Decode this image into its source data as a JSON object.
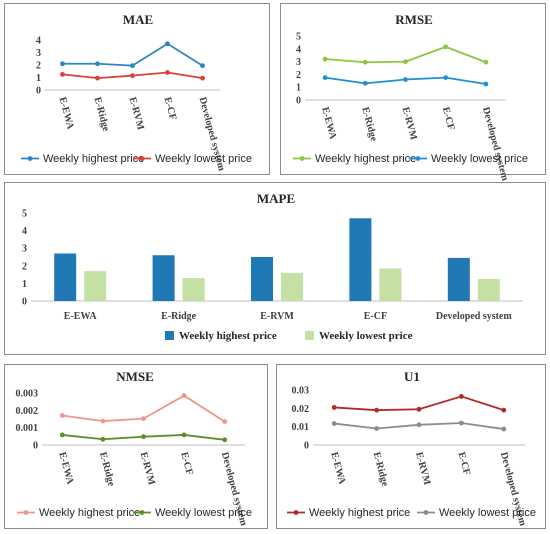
{
  "chart_data": [
    {
      "type": "line",
      "title": "MAE",
      "categories": [
        "E-EWA",
        "E-Ridge",
        "E-RVM",
        "E-CF",
        "Developed system"
      ],
      "ylim": [
        0,
        4
      ],
      "yticks": [
        "0",
        "1",
        "2",
        "3",
        "4"
      ],
      "series": [
        {
          "name": "Weekly highest price",
          "color": "#2e86c1",
          "values": [
            2.1,
            2.1,
            1.95,
            3.7,
            1.95
          ]
        },
        {
          "name": "Weekly lowest price",
          "color": "#d9423a",
          "values": [
            1.25,
            0.95,
            1.15,
            1.4,
            0.95
          ]
        }
      ],
      "legend": "bottom"
    },
    {
      "type": "line",
      "title": "RMSE",
      "categories": [
        "E-EWA",
        "E-Ridge",
        "E-RVM",
        "E-CF",
        "Developed system"
      ],
      "ylim": [
        0,
        5
      ],
      "yticks": [
        "0",
        "1",
        "2",
        "3",
        "4",
        "5"
      ],
      "series": [
        {
          "name": "Weekly highest price",
          "color": "#8dc63f",
          "values": [
            3.2,
            2.95,
            3.0,
            4.15,
            2.95
          ]
        },
        {
          "name": "Weekly lowest price",
          "color": "#1f8fd6",
          "values": [
            1.75,
            1.3,
            1.6,
            1.75,
            1.25
          ]
        }
      ],
      "legend": "bottom"
    },
    {
      "type": "bar",
      "title": "MAPE",
      "categories": [
        "E-EWA",
        "E-Ridge",
        "E-RVM",
        "E-CF",
        "Developed system"
      ],
      "ylim": [
        0,
        5
      ],
      "yticks": [
        "0",
        "1",
        "2",
        "3",
        "4",
        "5"
      ],
      "series": [
        {
          "name": "Weekly highest price",
          "color": "#2078b4",
          "values": [
            2.7,
            2.6,
            2.5,
            4.7,
            2.45
          ]
        },
        {
          "name": "Weekly lowest price",
          "color": "#c5e0a5",
          "values": [
            1.7,
            1.3,
            1.6,
            1.85,
            1.25
          ]
        }
      ],
      "legend": "bottom"
    },
    {
      "type": "line",
      "title": "NMSE",
      "categories": [
        "E-EWA",
        "E-Ridge",
        "E-RVM",
        "E-CF",
        "Developed system"
      ],
      "ylim": [
        0,
        0.003
      ],
      "yticks": [
        "0",
        "0.001",
        "0.002",
        "0.003"
      ],
      "series": [
        {
          "name": "Weekly highest price",
          "color": "#f1948a",
          "values": [
            0.0017,
            0.00138,
            0.00152,
            0.00285,
            0.00135
          ]
        },
        {
          "name": "Weekly lowest price",
          "color": "#5a8f29",
          "values": [
            0.00058,
            0.00033,
            0.00048,
            0.00058,
            0.0003
          ]
        }
      ],
      "legend": "bottom"
    },
    {
      "type": "line",
      "title": "U1",
      "categories": [
        "E-EWA",
        "E-Ridge",
        "E-RVM",
        "E-CF",
        "Developed system"
      ],
      "ylim": [
        0,
        0.03
      ],
      "yticks": [
        "0",
        "0.01",
        "0.02",
        "0.03"
      ],
      "series": [
        {
          "name": "Weekly highest price",
          "color": "#b22a2a",
          "values": [
            0.0205,
            0.019,
            0.0195,
            0.0265,
            0.019
          ]
        },
        {
          "name": "Weekly lowest price",
          "color": "#8c8c8c",
          "values": [
            0.0117,
            0.009,
            0.011,
            0.012,
            0.0087
          ]
        }
      ],
      "legend": "bottom"
    }
  ]
}
